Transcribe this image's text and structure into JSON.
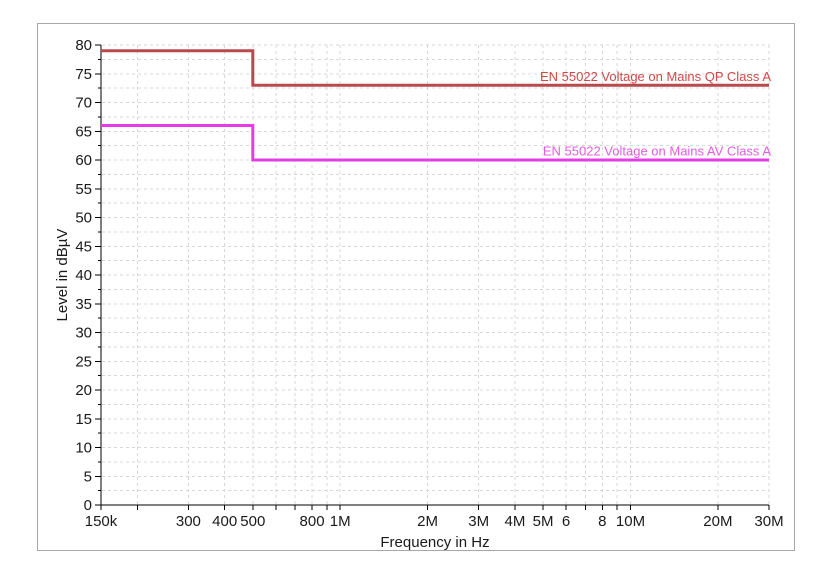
{
  "window": {
    "background_color": "#ffffff",
    "panel_border_color": "#a8a8a8"
  },
  "chart_data": {
    "type": "line",
    "subtype": "step-limit-lines",
    "title": "",
    "xlabel": "Frequency in Hz",
    "ylabel": "Level in dBµV",
    "x_scale": "log",
    "xlim": [
      150000,
      30000000
    ],
    "ylim": [
      0,
      80
    ],
    "y_minor_step": 2.5,
    "grid": {
      "show": true,
      "color": "#d7d7d7",
      "dash": "3 3"
    },
    "axis_color": "#000000",
    "text_color": "#1a1a1a",
    "x_ticks": [
      {
        "value": 150000,
        "label": "150k"
      },
      {
        "value": 200000,
        "label": ""
      },
      {
        "value": 300000,
        "label": "300"
      },
      {
        "value": 400000,
        "label": "400"
      },
      {
        "value": 500000,
        "label": "500"
      },
      {
        "value": 600000,
        "label": ""
      },
      {
        "value": 700000,
        "label": ""
      },
      {
        "value": 800000,
        "label": "800"
      },
      {
        "value": 900000,
        "label": ""
      },
      {
        "value": 1000000,
        "label": "1M"
      },
      {
        "value": 2000000,
        "label": "2M"
      },
      {
        "value": 3000000,
        "label": "3M"
      },
      {
        "value": 4000000,
        "label": "4M"
      },
      {
        "value": 5000000,
        "label": "5M"
      },
      {
        "value": 6000000,
        "label": "6"
      },
      {
        "value": 7000000,
        "label": ""
      },
      {
        "value": 8000000,
        "label": "8"
      },
      {
        "value": 9000000,
        "label": ""
      },
      {
        "value": 10000000,
        "label": "10M"
      },
      {
        "value": 20000000,
        "label": "20M"
      },
      {
        "value": 30000000,
        "label": "30M"
      }
    ],
    "y_ticks": [
      {
        "value": 0,
        "label": "0"
      },
      {
        "value": 5,
        "label": "5"
      },
      {
        "value": 10,
        "label": "10"
      },
      {
        "value": 15,
        "label": "15"
      },
      {
        "value": 20,
        "label": "20"
      },
      {
        "value": 25,
        "label": "25"
      },
      {
        "value": 30,
        "label": "30"
      },
      {
        "value": 35,
        "label": "35"
      },
      {
        "value": 40,
        "label": "40"
      },
      {
        "value": 45,
        "label": "45"
      },
      {
        "value": 50,
        "label": "50"
      },
      {
        "value": 55,
        "label": "55"
      },
      {
        "value": 60,
        "label": "60"
      },
      {
        "value": 65,
        "label": "65"
      },
      {
        "value": 70,
        "label": "70"
      },
      {
        "value": 75,
        "label": "75"
      },
      {
        "value": 80,
        "label": "80"
      }
    ],
    "series": [
      {
        "name": "EN 55022 Voltage on Mains QP Class A",
        "color": "#b84a4e",
        "label_color": "#d04848",
        "points": [
          [
            150000,
            79
          ],
          [
            500000,
            79
          ],
          [
            500000,
            73
          ],
          [
            30000000,
            73
          ]
        ]
      },
      {
        "name": "EN 55022 Voltage on Mains AV Class A",
        "color": "#e53ce5",
        "label_color": "#e45ce4",
        "points": [
          [
            150000,
            66
          ],
          [
            500000,
            66
          ],
          [
            500000,
            60
          ],
          [
            30000000,
            60
          ]
        ]
      }
    ],
    "legend_position": "label-above-line-right-aligned"
  }
}
